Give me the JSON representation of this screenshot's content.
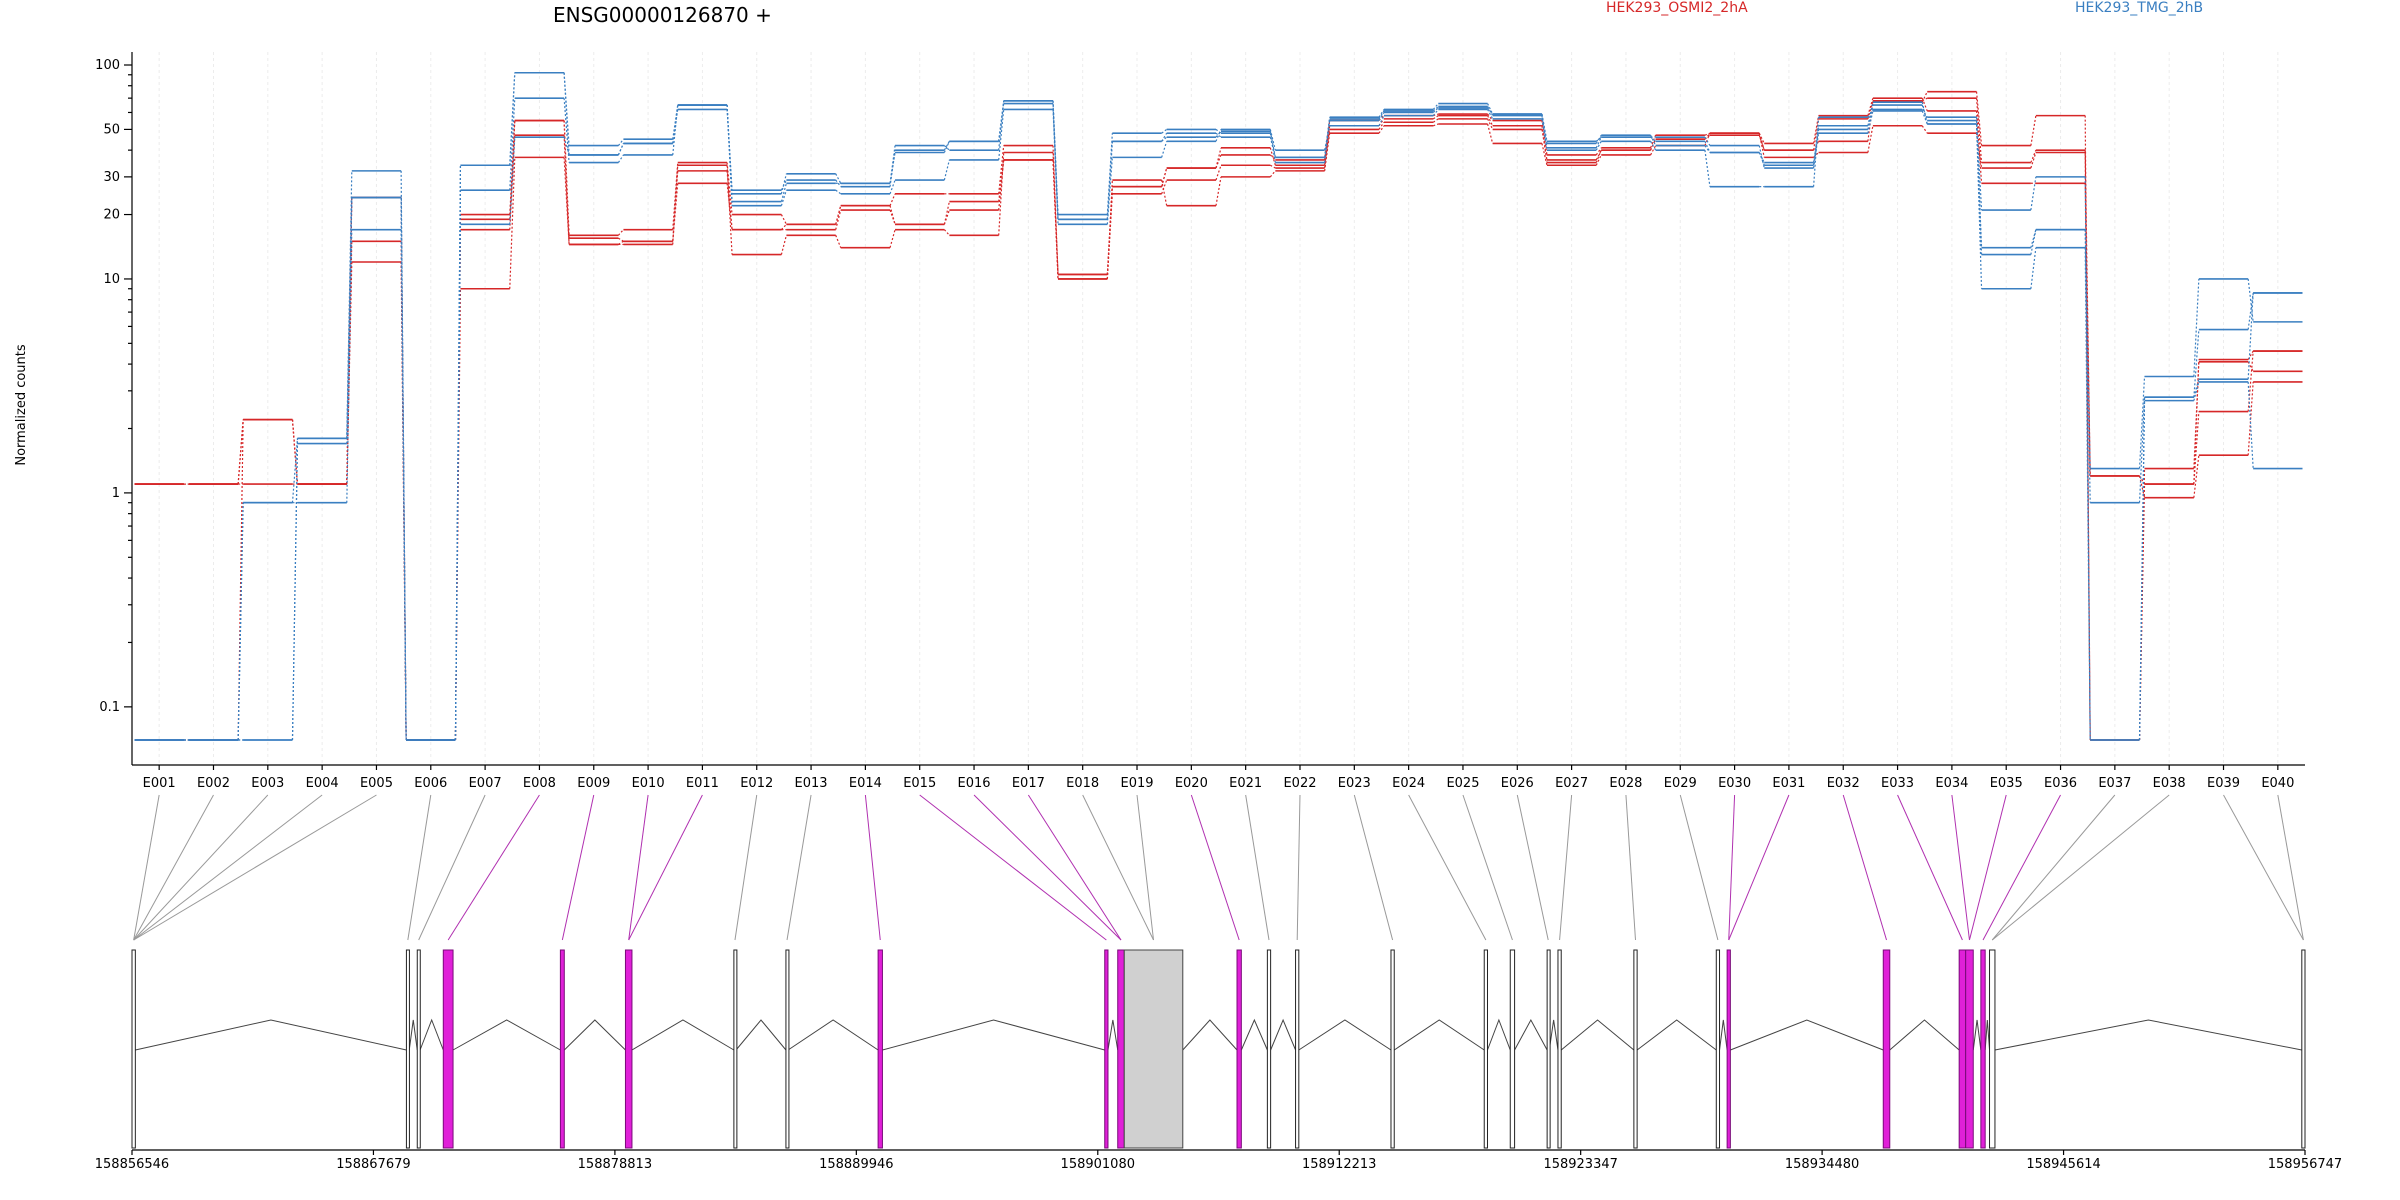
{
  "chart_data": {
    "type": "line",
    "title": "ENSG00000126870 +",
    "xlabel": "",
    "ylabel": "Normalized counts",
    "y_scale": "log",
    "y_ticks": [
      "0.1",
      "1",
      "10",
      "20",
      "30",
      "50",
      "100"
    ],
    "grid": true,
    "legend_placement": "top",
    "categories": [
      "E001",
      "E002",
      "E003",
      "E004",
      "E005",
      "E006",
      "E007",
      "E008",
      "E009",
      "E010",
      "E011",
      "E012",
      "E013",
      "E014",
      "E015",
      "E016",
      "E017",
      "E018",
      "E019",
      "E020",
      "E021",
      "E022",
      "E023",
      "E024",
      "E025",
      "E026",
      "E027",
      "E028",
      "E029",
      "E030",
      "E031",
      "E032",
      "E033",
      "E034",
      "E035",
      "E036",
      "E037",
      "E038",
      "E039",
      "E040"
    ],
    "groups": [
      {
        "name": "HEK293_OSMI2_2hA",
        "color": "#d62728"
      },
      {
        "name": "HEK293_TMG_2hB",
        "color": "#3a7fc1"
      }
    ],
    "series": [
      {
        "group": "HEK293_OSMI2_2hA",
        "values": [
          1.1,
          1.1,
          1.1,
          1.1,
          15,
          0.07,
          20,
          55,
          16,
          17,
          35,
          20,
          18,
          22,
          25,
          25,
          42,
          10.5,
          27,
          33,
          38,
          36,
          55,
          58,
          59,
          55,
          38,
          41,
          47,
          48,
          40,
          44,
          67,
          75,
          42,
          58,
          0.07,
          1.1,
          4.2,
          4.6
        ]
      },
      {
        "group": "HEK293_OSMI2_2hA",
        "values": [
          1.1,
          1.1,
          2.2,
          1.1,
          24,
          0.07,
          17,
          47,
          14.5,
          15,
          28,
          17,
          17,
          21,
          18,
          21,
          36,
          10,
          25,
          29,
          34,
          33,
          52,
          56,
          58,
          52,
          35,
          40,
          45,
          48,
          37,
          39,
          52,
          48,
          33,
          39,
          1.2,
          1.1,
          2.4,
          4.6
        ]
      },
      {
        "group": "HEK293_OSMI2_2hA",
        "values": [
          1.1,
          1.1,
          2.2,
          1.1,
          12,
          0.07,
          9,
          37,
          14.5,
          14.5,
          34,
          13,
          16,
          14,
          17,
          16,
          39,
          10,
          29,
          22,
          30,
          32,
          48,
          52,
          53,
          43,
          34,
          38,
          42,
          48,
          43,
          58,
          70,
          61,
          28,
          28,
          1.2,
          0.95,
          1.5,
          3.3
        ]
      },
      {
        "group": "HEK293_OSMI2_2hA",
        "values": [
          0.07,
          0.07,
          2.2,
          1.1,
          24,
          0.07,
          19,
          55,
          15.5,
          15,
          32,
          17,
          18,
          22,
          18,
          23,
          36,
          10.5,
          27,
          33,
          41,
          34,
          50,
          54,
          56,
          50,
          36,
          40,
          45,
          47,
          40,
          56,
          68,
          70,
          35,
          40,
          0.07,
          1.3,
          4.1,
          3.7
        ]
      },
      {
        "group": "HEK293_TMG_2hB",
        "values": [
          0.07,
          0.07,
          0.9,
          0.9,
          17,
          0.07,
          26,
          70,
          35,
          38,
          65,
          22,
          26,
          25,
          29,
          36,
          62,
          18,
          37,
          44,
          50,
          40,
          52,
          58,
          62,
          56,
          40,
          44,
          40,
          27,
          27,
          57,
          62,
          57,
          21,
          30,
          0.07,
          2.7,
          3.3,
          1.3
        ]
      },
      {
        "group": "HEK293_TMG_2hB",
        "values": [
          0.07,
          0.07,
          0.07,
          1.8,
          32,
          0.07,
          34,
          92,
          42,
          45,
          65,
          25,
          31,
          28,
          42,
          40,
          68,
          20,
          48,
          50,
          48,
          35,
          55,
          60,
          63,
          59,
          44,
          46,
          44,
          39,
          35,
          50,
          65,
          55,
          13,
          17,
          1.3,
          3.5,
          10,
          6.3
        ]
      },
      {
        "group": "HEK293_TMG_2hB",
        "values": [
          0.07,
          0.07,
          0.07,
          1.7,
          24,
          0.07,
          34,
          92,
          38,
          43,
          62,
          26,
          29,
          27,
          40,
          44,
          66,
          19,
          44,
          48,
          46,
          37,
          57,
          62,
          66,
          59,
          43,
          47,
          42,
          39,
          34,
          52,
          67,
          53,
          9,
          14,
          0.07,
          2.8,
          5.8,
          8.6
        ]
      },
      {
        "group": "HEK293_TMG_2hB",
        "values": [
          0.07,
          0.07,
          0.9,
          1.8,
          24,
          0.07,
          18,
          46,
          38,
          43,
          65,
          23,
          28,
          28,
          39,
          44,
          68,
          19,
          44,
          46,
          49,
          37,
          56,
          61,
          64,
          58,
          41,
          46,
          46,
          42,
          33,
          48,
          61,
          53,
          14,
          17,
          0.9,
          2.8,
          3.4,
          8.6
        ]
      }
    ],
    "gene_model": {
      "coordinate_ticks": [
        "158856546",
        "158867679",
        "158878813",
        "158889946",
        "158901080",
        "158912213",
        "158923347",
        "158934480",
        "158945614",
        "158956747"
      ],
      "exons": [
        {
          "start": 158856546,
          "end": 158856700
        },
        {
          "start": 158869200,
          "end": 158869330
        },
        {
          "start": 158869700,
          "end": 158869830
        },
        {
          "start": 158870900,
          "end": 158871350,
          "highlighted": true
        },
        {
          "start": 158876300,
          "end": 158876480,
          "highlighted": true
        },
        {
          "start": 158879300,
          "end": 158879600,
          "highlighted": true
        },
        {
          "start": 158884300,
          "end": 158884400
        },
        {
          "start": 158886700,
          "end": 158886800
        },
        {
          "start": 158890950,
          "end": 158891150,
          "highlighted": true
        },
        {
          "start": 158901400,
          "end": 158901550,
          "highlighted": true
        },
        {
          "start": 158902000,
          "end": 158902300,
          "highlighted": true
        },
        {
          "start": 158902300,
          "end": 158905000,
          "gray": true
        },
        {
          "start": 158907500,
          "end": 158907700,
          "highlighted": true
        },
        {
          "start": 158908900,
          "end": 158909050
        },
        {
          "start": 158910200,
          "end": 158910350
        },
        {
          "start": 158914600,
          "end": 158914750
        },
        {
          "start": 158918900,
          "end": 158919050
        },
        {
          "start": 158920100,
          "end": 158920300
        },
        {
          "start": 158921800,
          "end": 158921900
        },
        {
          "start": 158922300,
          "end": 158922450
        },
        {
          "start": 158925800,
          "end": 158925950
        },
        {
          "start": 158929600,
          "end": 158929750
        },
        {
          "start": 158930100,
          "end": 158930250,
          "highlighted": true
        },
        {
          "start": 158937300,
          "end": 158937600,
          "highlighted": true
        },
        {
          "start": 158940800,
          "end": 158941100,
          "highlighted": true
        },
        {
          "start": 158941100,
          "end": 158941450,
          "highlighted": true
        },
        {
          "start": 158941800,
          "end": 158942000,
          "highlighted": true
        },
        {
          "start": 158942200,
          "end": 158942450
        },
        {
          "start": 158956600,
          "end": 158956747
        }
      ]
    }
  }
}
